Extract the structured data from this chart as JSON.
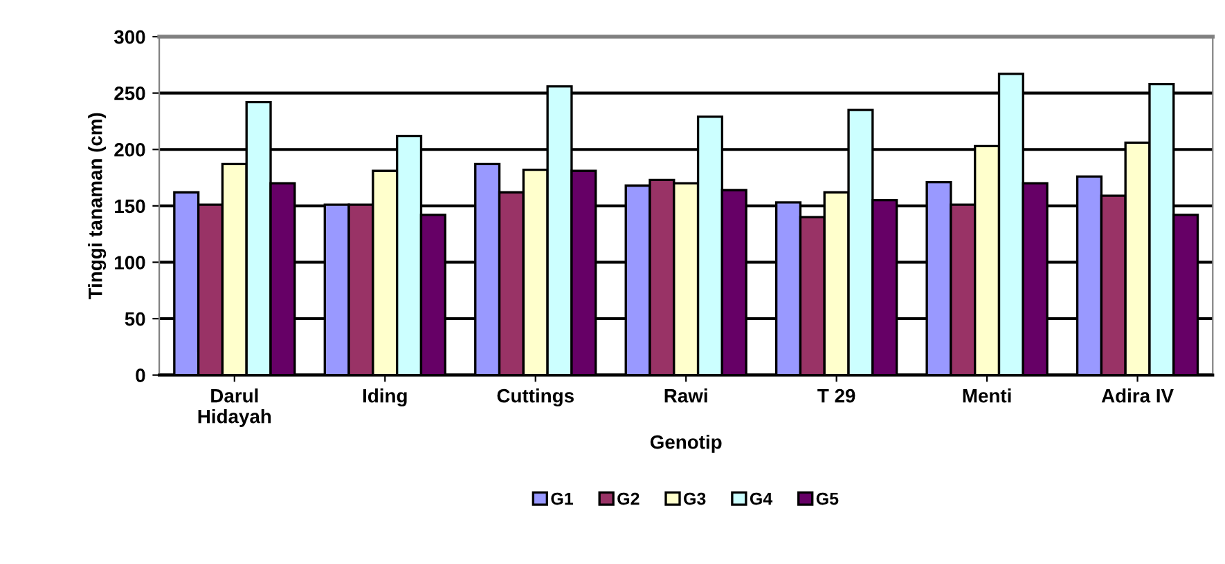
{
  "chart_data": {
    "type": "bar",
    "xlabel": "Genotip",
    "ylabel": "Tinggi tanaman (cm)",
    "categories": [
      "Darul\nHidayah",
      "Iding",
      "Cuttings",
      "Rawi",
      "T 29",
      "Menti",
      "Adira IV"
    ],
    "series": [
      {
        "name": "G1",
        "color": "#9999ff",
        "values": [
          162,
          151,
          187,
          168,
          153,
          171,
          176
        ]
      },
      {
        "name": "G2",
        "color": "#993366",
        "values": [
          151,
          151,
          162,
          173,
          140,
          151,
          159
        ]
      },
      {
        "name": "G3",
        "color": "#ffffcc",
        "values": [
          187,
          181,
          182,
          170,
          162,
          203,
          206
        ]
      },
      {
        "name": "G4",
        "color": "#ccffff",
        "values": [
          242,
          212,
          256,
          229,
          235,
          267,
          258
        ]
      },
      {
        "name": "G5",
        "color": "#660066",
        "values": [
          170,
          142,
          181,
          164,
          155,
          170,
          142
        ]
      }
    ],
    "ylim": [
      0,
      300
    ],
    "yticks": [
      0,
      50,
      100,
      150,
      200,
      250,
      300
    ],
    "grid": "y",
    "legend": "bottom"
  }
}
